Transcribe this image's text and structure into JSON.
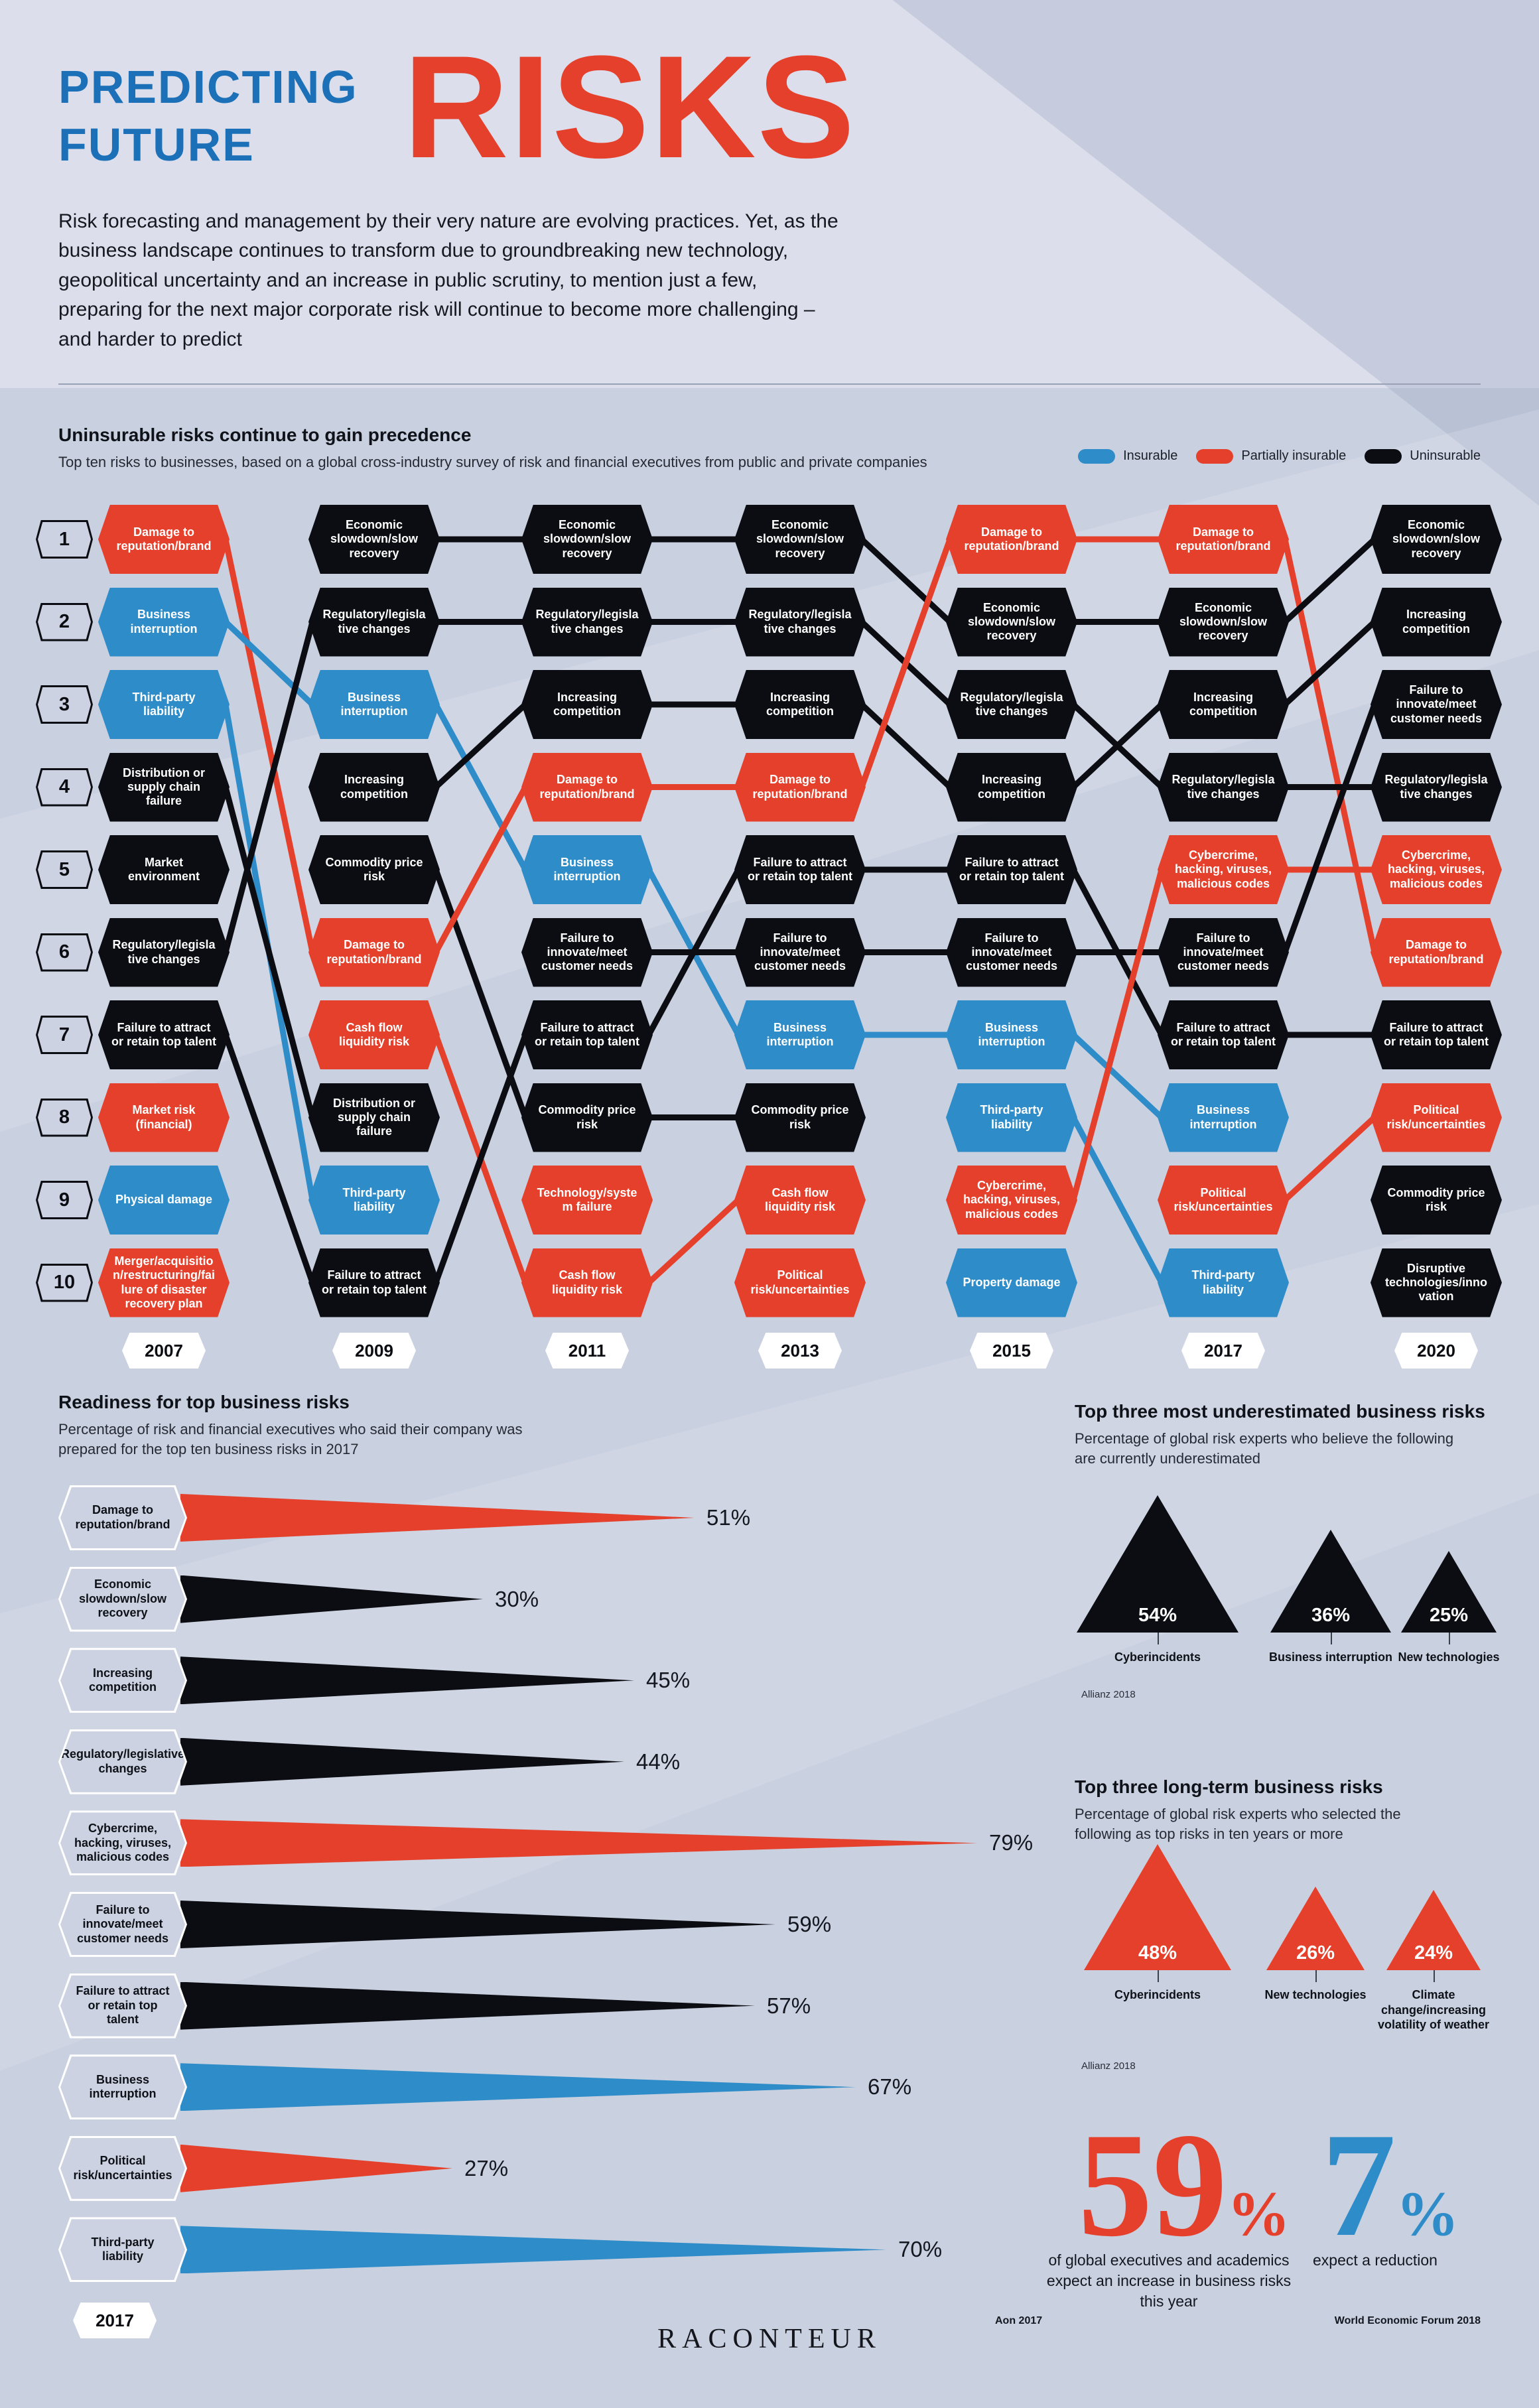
{
  "title": {
    "line1": "PREDICTING",
    "line2": "FUTURE",
    "big": "RISKS"
  },
  "intro": "Risk forecasting and management by their very nature are evolving practices. Yet, as the business landscape continues to transform due to groundbreaking new technology, geopolitical uncertainty and an increase in public scrutiny, to mention just a few, preparing for the next major corporate risk will continue to become more challenging – and harder to predict",
  "colors": {
    "insurable": "#2e8cc9",
    "partially": "#e5402b",
    "uninsurable": "#0c0d12"
  },
  "chart_data": [
    {
      "type": "table",
      "name": "risk-rankings",
      "title": "Uninsurable risks continue to gain precedence",
      "subtitle": "Top ten risks to businesses, based on a global cross-industry survey of risk and financial executives from public and private companies",
      "legend": [
        {
          "label": "Insurable",
          "category": "insurable"
        },
        {
          "label": "Partially insurable",
          "category": "partially"
        },
        {
          "label": "Uninsurable",
          "category": "uninsurable"
        }
      ],
      "risks": {
        "reputation": {
          "label": "Damage to reputation/brand",
          "category": "partially"
        },
        "business_interruption": {
          "label": "Business interruption",
          "category": "insurable"
        },
        "third_party": {
          "label": "Third-party liability",
          "category": "insurable"
        },
        "supply_chain": {
          "label": "Distribution or supply chain failure",
          "category": "uninsurable"
        },
        "market_env": {
          "label": "Market environment",
          "category": "uninsurable"
        },
        "regulatory": {
          "label": "Regulatory/legislative changes",
          "category": "uninsurable"
        },
        "talent": {
          "label": "Failure to attract or retain top talent",
          "category": "uninsurable"
        },
        "market_risk": {
          "label": "Market risk (financial)",
          "category": "partially"
        },
        "physical_damage": {
          "label": "Physical damage",
          "category": "insurable"
        },
        "merger": {
          "label": "Merger/acquisition/restructuring/failure of disaster recovery plan",
          "category": "partially"
        },
        "economic": {
          "label": "Economic slowdown/slow recovery",
          "category": "uninsurable"
        },
        "competition": {
          "label": "Increasing competition",
          "category": "uninsurable"
        },
        "commodity": {
          "label": "Commodity price risk",
          "category": "uninsurable"
        },
        "cash_flow": {
          "label": "Cash flow liquidity risk",
          "category": "partially"
        },
        "innovate": {
          "label": "Failure to innovate/meet customer needs",
          "category": "uninsurable"
        },
        "tech_failure": {
          "label": "Technology/system failure",
          "category": "partially"
        },
        "political": {
          "label": "Political risk/uncertainties",
          "category": "partially"
        },
        "cyber": {
          "label": "Cybercrime, hacking, viruses, malicious codes",
          "category": "partially"
        },
        "property": {
          "label": "Property damage",
          "category": "insurable"
        },
        "disruptive": {
          "label": "Disruptive technologies/innovation",
          "category": "uninsurable"
        }
      },
      "years": [
        {
          "year": "2007",
          "ranking": [
            "reputation",
            "business_interruption",
            "third_party",
            "supply_chain",
            "market_env",
            "regulatory",
            "talent",
            "market_risk",
            "physical_damage",
            "merger"
          ]
        },
        {
          "year": "2009",
          "ranking": [
            "economic",
            "regulatory",
            "business_interruption",
            "competition",
            "commodity",
            "reputation",
            "cash_flow",
            "supply_chain",
            "third_party",
            "talent"
          ]
        },
        {
          "year": "2011",
          "ranking": [
            "economic",
            "regulatory",
            "competition",
            "reputation",
            "business_interruption",
            "innovate",
            "talent",
            "commodity",
            "tech_failure",
            "cash_flow"
          ]
        },
        {
          "year": "2013",
          "ranking": [
            "economic",
            "regulatory",
            "competition",
            "reputation",
            "talent",
            "innovate",
            "business_interruption",
            "commodity",
            "cash_flow",
            "political"
          ]
        },
        {
          "year": "2015",
          "ranking": [
            "reputation",
            "economic",
            "regulatory",
            "competition",
            "talent",
            "innovate",
            "business_interruption",
            "third_party",
            "cyber",
            "property"
          ]
        },
        {
          "year": "2017",
          "ranking": [
            "reputation",
            "economic",
            "competition",
            "regulatory",
            "cyber",
            "innovate",
            "talent",
            "business_interruption",
            "political",
            "third_party"
          ]
        },
        {
          "year": "2020",
          "ranking": [
            "economic",
            "competition",
            "innovate",
            "regulatory",
            "cyber",
            "reputation",
            "talent",
            "political",
            "commodity",
            "disruptive"
          ]
        }
      ]
    },
    {
      "type": "bar",
      "name": "readiness",
      "title": "Readiness for top business risks",
      "subtitle": "Percentage of risk and financial executives who said their company was prepared for the top ten business risks in 2017",
      "year": "2017",
      "items": [
        {
          "label": "Damage to reputation/brand",
          "pct": 51,
          "category": "partially"
        },
        {
          "label": "Economic slowdown/slow recovery",
          "pct": 30,
          "category": "uninsurable"
        },
        {
          "label": "Increasing competition",
          "pct": 45,
          "category": "uninsurable"
        },
        {
          "label": "Regulatory/legislative changes",
          "pct": 44,
          "category": "uninsurable"
        },
        {
          "label": "Cybercrime, hacking, viruses, malicious codes",
          "pct": 79,
          "category": "partially"
        },
        {
          "label": "Failure to innovate/meet customer needs",
          "pct": 59,
          "category": "uninsurable"
        },
        {
          "label": "Failure to attract or retain top talent",
          "pct": 57,
          "category": "uninsurable"
        },
        {
          "label": "Business interruption",
          "pct": 67,
          "category": "insurable"
        },
        {
          "label": "Political risk/uncertainties",
          "pct": 27,
          "category": "partially"
        },
        {
          "label": "Third-party liability",
          "pct": 70,
          "category": "insurable"
        }
      ]
    },
    {
      "type": "bar",
      "name": "underestimated",
      "title": "Top three most underestimated business risks",
      "subtitle": "Percentage of global risk experts who believe the following are currently underestimated",
      "source": "Allianz 2018",
      "category": "uninsurable",
      "items": [
        {
          "label": "Cyberincidents",
          "pct": 54
        },
        {
          "label": "Business interruption",
          "pct": 36
        },
        {
          "label": "New technologies",
          "pct": 25
        }
      ]
    },
    {
      "type": "bar",
      "name": "longterm",
      "title": "Top three long-term business risks",
      "subtitle": "Percentage of global risk experts who selected the following as top risks in ten years or more",
      "source": "Allianz 2018",
      "category": "partially",
      "items": [
        {
          "label": "Cyberincidents",
          "pct": 48
        },
        {
          "label": "New technologies",
          "pct": 26
        },
        {
          "label": "Climate change/increasing volatility of weather",
          "pct": 24
        }
      ]
    }
  ],
  "big": {
    "increase": {
      "value": "59",
      "suffix": "%",
      "caption": "of global executives and academics expect an increase in business risks this year"
    },
    "reduction": {
      "value": "7",
      "suffix": "%",
      "caption": "expect a reduction"
    }
  },
  "footer": {
    "source_left": "Aon 2017",
    "brand": "RACONTEUR",
    "source_right": "World Economic Forum 2018"
  }
}
